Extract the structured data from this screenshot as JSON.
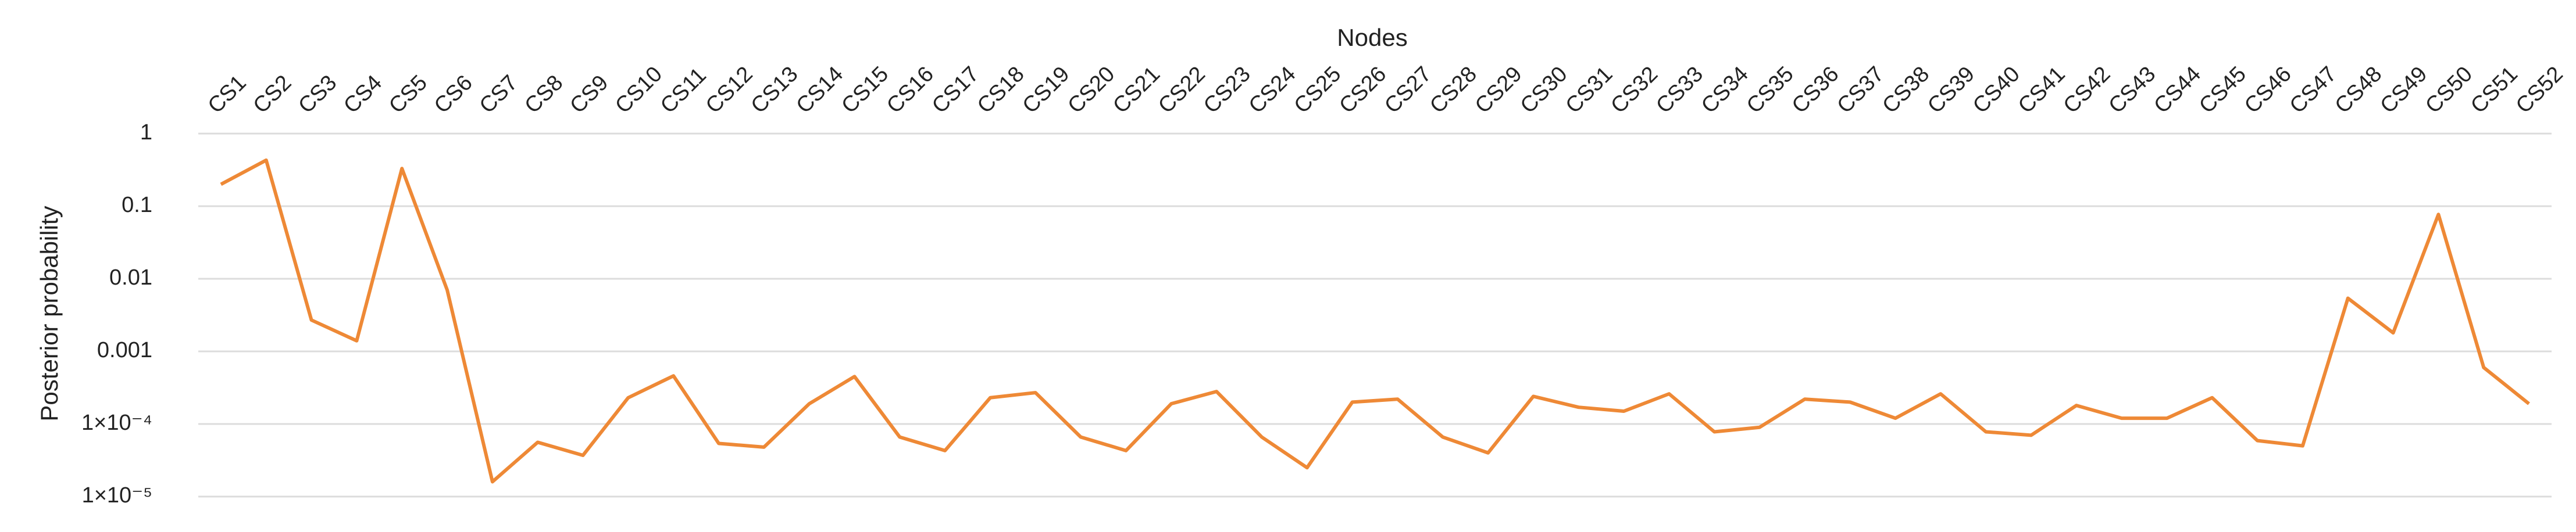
{
  "chart_data": {
    "type": "line",
    "x_label": "Nodes",
    "y_label": "Posterior probability",
    "categories": [
      "CS1",
      "CS2",
      "CS3",
      "CS4",
      "CS5",
      "CS6",
      "CS7",
      "CS8",
      "CS9",
      "CS10",
      "CS11",
      "CS12",
      "CS13",
      "CS14",
      "CS15",
      "CS16",
      "CS17",
      "CS18",
      "CS19",
      "CS20",
      "CS21",
      "CS22",
      "CS23",
      "CS24",
      "CS25",
      "CS26",
      "CS27",
      "CS28",
      "CS29",
      "CS30",
      "CS31",
      "CS32",
      "CS33",
      "CS34",
      "CS35",
      "CS36",
      "CS37",
      "CS38",
      "CS39",
      "CS40",
      "CS41",
      "CS42",
      "CS43",
      "CS44",
      "CS45",
      "CS46",
      "CS47",
      "CS48",
      "CS49",
      "CS50",
      "CS51",
      "CS52"
    ],
    "series": [
      {
        "color": "#ee8936",
        "values": [
          0.2,
          0.43,
          0.0027,
          0.0014,
          0.33,
          0.007,
          1.6e-05,
          5.6e-05,
          3.7e-05,
          0.00023,
          0.00046,
          5.4e-05,
          4.8e-05,
          0.00019,
          0.00045,
          6.6e-05,
          4.3e-05,
          0.00023,
          0.00027,
          6.6e-05,
          4.3e-05,
          0.00019,
          0.00028,
          6.6e-05,
          2.5e-05,
          0.0002,
          0.00022,
          6.6e-05,
          4e-05,
          0.00024,
          0.00017,
          0.00015,
          0.00026,
          7.8e-05,
          9e-05,
          0.00022,
          0.0002,
          0.00012,
          0.00026,
          7.8e-05,
          7e-05,
          0.00018,
          0.00012,
          0.00012,
          0.00023,
          5.9e-05,
          5e-05,
          0.0054,
          0.0018,
          0.077,
          0.0006,
          0.00019
        ]
      }
    ],
    "yscale": "log",
    "ylim": [
      1e-05,
      1
    ],
    "yticks": [
      1,
      0.1,
      0.01,
      0.001,
      {
        "value": 0.0001,
        "label": "1×10⁻⁴"
      },
      {
        "value": 1e-05,
        "label": "1×10⁻⁵"
      }
    ],
    "grid": true
  }
}
